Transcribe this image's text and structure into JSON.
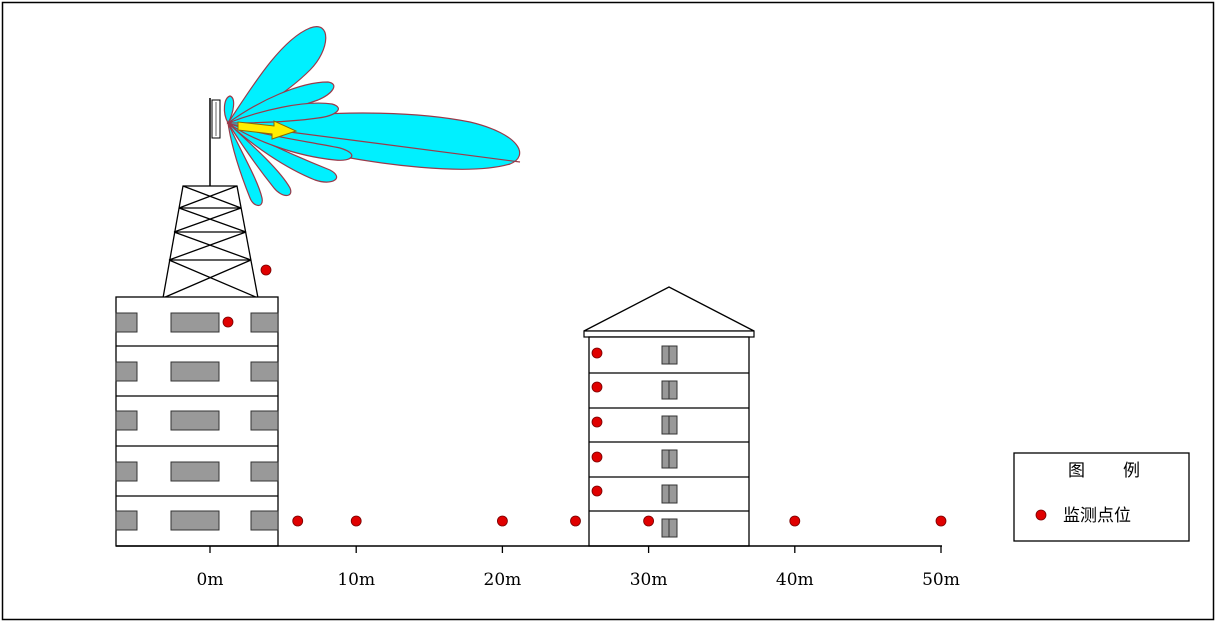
{
  "axis": {
    "ticks": [
      "0m",
      "10m",
      "20m",
      "30m",
      "40m",
      "50m"
    ]
  },
  "legend": {
    "title_left": "图",
    "title_right": "例",
    "item_label": "监测点位"
  },
  "colors": {
    "lobe_fill": "#00f0ff",
    "lobe_stroke": "#9a3a4a",
    "arrow_fill": "#ffee00",
    "window_fill": "#999999",
    "point_fill": "#e00000",
    "line": "#000000"
  },
  "monitoring_points": {
    "ground_distances_m": [
      6,
      10,
      20,
      25,
      30,
      40,
      50
    ],
    "tall_building_side_floors": [
      1,
      2,
      3,
      4,
      5
    ],
    "tower_building_points": [
      "roof-top",
      "top-floor"
    ]
  }
}
